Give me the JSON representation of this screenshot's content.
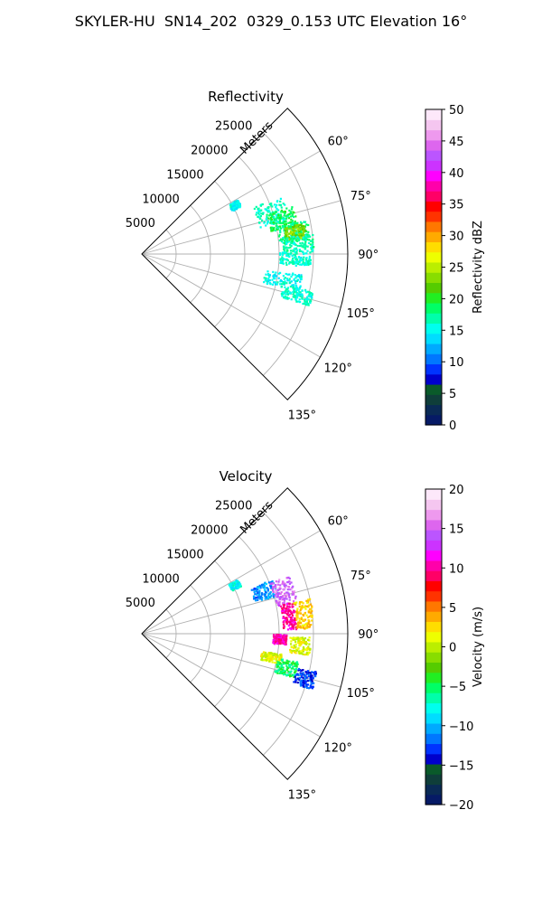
{
  "figure": {
    "suptitle": "SKYLER-HU  SN14_202  0329_0.153 UTC Elevation 16°"
  },
  "chart_data": [
    {
      "type": "heatmap",
      "title": "Reflectivity",
      "radial_axis_label": "Meters",
      "radial_ticks": [
        "5000",
        "10000",
        "15000",
        "20000",
        "25000"
      ],
      "radial_tick_values": [
        5000,
        10000,
        15000,
        20000,
        25000
      ],
      "range_max": 30000,
      "angular_ticks": [
        "60°",
        "75°",
        "90°",
        "105°",
        "120°",
        "135°"
      ],
      "angular_tick_values": [
        60,
        75,
        90,
        105,
        120,
        135
      ],
      "azimuth_range": [
        45,
        135
      ],
      "grid": true,
      "colorbar": {
        "label": "Reflectivity dBZ",
        "ticks": [
          "0",
          "5",
          "10",
          "15",
          "20",
          "25",
          "30",
          "35",
          "40",
          "45",
          "50"
        ],
        "tick_values": [
          0,
          5,
          10,
          15,
          20,
          25,
          30,
          35,
          40,
          45,
          50
        ],
        "vmin": 0,
        "vmax": 50,
        "colors": [
          "#061a66",
          "#0a2a55",
          "#0f3e3a",
          "#0a5a2a",
          "#0000cc",
          "#0033ff",
          "#0077ff",
          "#00aaff",
          "#00ddff",
          "#00ffee",
          "#00ffaa",
          "#00ff66",
          "#22ee22",
          "#55cc00",
          "#88dd00",
          "#bbee00",
          "#eeff00",
          "#ffdd00",
          "#ffaa00",
          "#ff7700",
          "#ff3300",
          "#ff0000",
          "#ff0066",
          "#ff00aa",
          "#ff00ff",
          "#cc33ff",
          "#bb55ff",
          "#dd66ee",
          "#ee99ee",
          "#f5c6f0",
          "#fde8fa"
        ]
      },
      "echo_regions": [
        {
          "az": [
            67,
            77
          ],
          "range": [
            17500,
            22000
          ],
          "value": 16
        },
        {
          "az": [
            72,
            80
          ],
          "range": [
            19000,
            23000
          ],
          "value": 19
        },
        {
          "az": [
            78,
            85
          ],
          "range": [
            20000,
            24500
          ],
          "value": 18
        },
        {
          "az": [
            79,
            84
          ],
          "range": [
            21000,
            24000
          ],
          "value": 23
        },
        {
          "az": [
            83,
            89
          ],
          "range": [
            20500,
            25000
          ],
          "value": 17
        },
        {
          "az": [
            89,
            94
          ],
          "range": [
            20000,
            24500
          ],
          "value": 16
        },
        {
          "az": [
            97,
            103
          ],
          "range": [
            18000,
            23500
          ],
          "value": 15
        },
        {
          "az": [
            102,
            107
          ],
          "range": [
            21000,
            25500
          ],
          "value": 16
        },
        {
          "az": [
            60,
            64
          ],
          "range": [
            14500,
            16000
          ],
          "value": 15
        }
      ]
    },
    {
      "type": "heatmap",
      "title": "Velocity",
      "radial_axis_label": "Meters",
      "radial_ticks": [
        "5000",
        "10000",
        "15000",
        "20000",
        "25000"
      ],
      "radial_tick_values": [
        5000,
        10000,
        15000,
        20000,
        25000
      ],
      "range_max": 30000,
      "angular_ticks": [
        "60°",
        "75°",
        "90°",
        "105°",
        "120°",
        "135°"
      ],
      "angular_tick_values": [
        60,
        75,
        90,
        105,
        120,
        135
      ],
      "azimuth_range": [
        45,
        135
      ],
      "grid": true,
      "colorbar": {
        "label": "Velocity (m/s)",
        "ticks": [
          "−20",
          "−15",
          "−10",
          "−5",
          "0",
          "5",
          "10",
          "15",
          "20"
        ],
        "tick_values": [
          -20,
          -15,
          -10,
          -5,
          0,
          5,
          10,
          15,
          20
        ],
        "vmin": -20,
        "vmax": 20,
        "colors": [
          "#061a66",
          "#0a2a55",
          "#0f3e3a",
          "#0a5a2a",
          "#0000cc",
          "#0033ff",
          "#0077ff",
          "#00aaff",
          "#00ddff",
          "#00ffee",
          "#00ffaa",
          "#00ff66",
          "#22ee22",
          "#55cc00",
          "#88dd00",
          "#bbee00",
          "#eeff00",
          "#ffdd00",
          "#ffaa00",
          "#ff7700",
          "#ff3300",
          "#ff0000",
          "#ff0066",
          "#ff00aa",
          "#ff00ff",
          "#cc33ff",
          "#bb55ff",
          "#dd66ee",
          "#ee99ee",
          "#f5c6f0",
          "#fde8fa"
        ]
      },
      "echo_regions": [
        {
          "az": [
            67,
            74
          ],
          "range": [
            17000,
            20500
          ],
          "value": -11
        },
        {
          "az": [
            68,
            78
          ],
          "range": [
            20000,
            23000
          ],
          "value": 15
        },
        {
          "az": [
            78,
            88
          ],
          "range": [
            20500,
            22500
          ],
          "value": 10
        },
        {
          "az": [
            78,
            88
          ],
          "range": [
            22500,
            25000
          ],
          "value": 3
        },
        {
          "az": [
            90,
            94
          ],
          "range": [
            19000,
            21000
          ],
          "value": 10
        },
        {
          "az": [
            91,
            97
          ],
          "range": [
            21500,
            24500
          ],
          "value": 1
        },
        {
          "az": [
            98,
            102
          ],
          "range": [
            17500,
            20500
          ],
          "value": 1
        },
        {
          "az": [
            100,
            106
          ],
          "range": [
            20000,
            23000
          ],
          "value": -5
        },
        {
          "az": [
            102,
            108
          ],
          "range": [
            23000,
            26000
          ],
          "value": -13
        },
        {
          "az": [
            60,
            64
          ],
          "range": [
            14500,
            16000
          ],
          "value": -8
        }
      ]
    }
  ]
}
